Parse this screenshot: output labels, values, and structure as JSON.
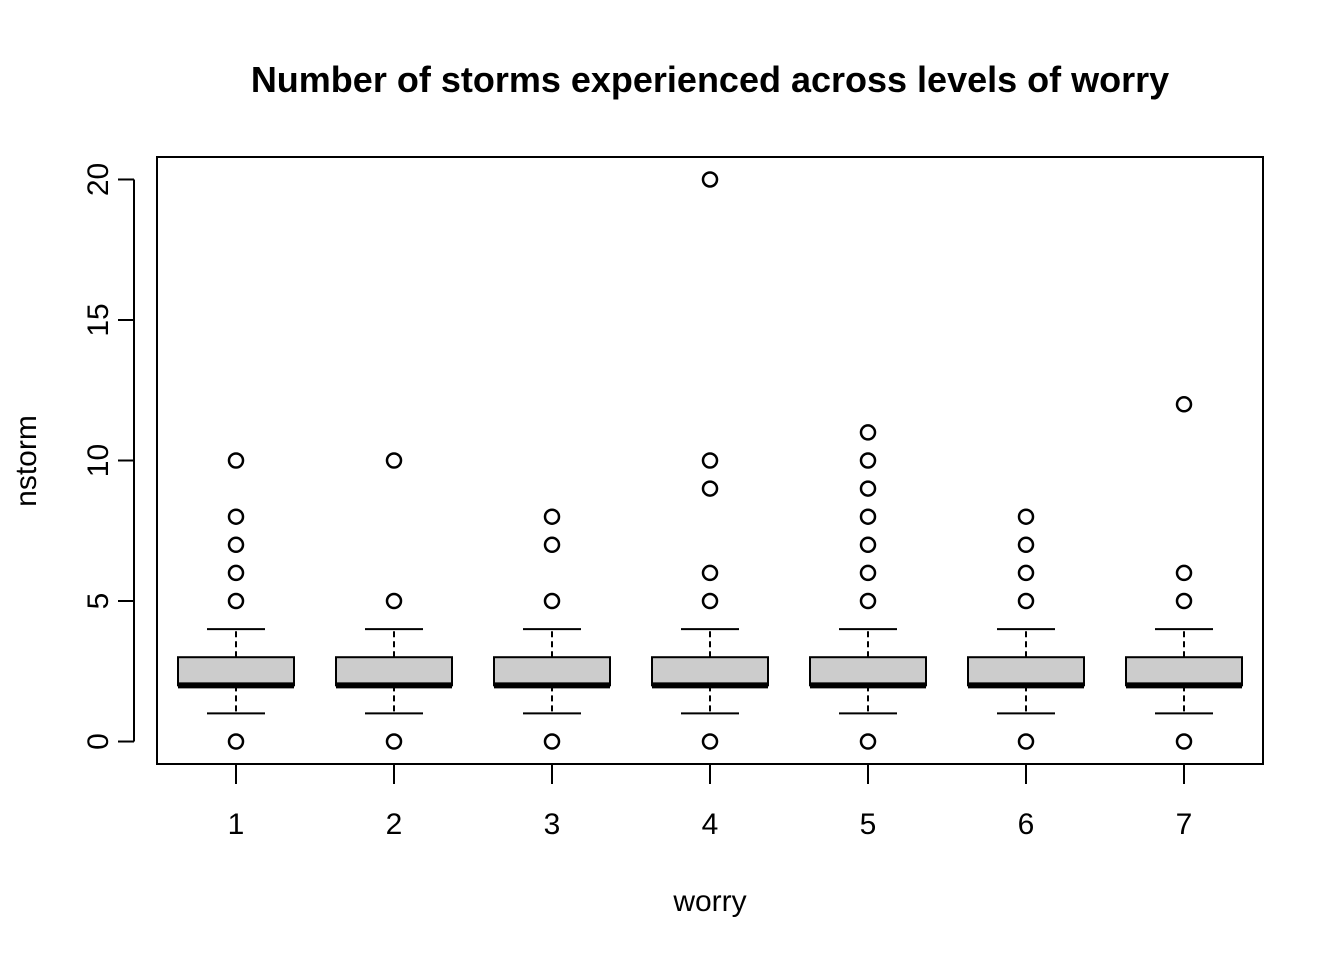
{
  "chart_data": {
    "type": "boxplot",
    "title": "Number of storms experienced across levels of worry",
    "xlabel": "worry",
    "ylabel": "nstorm",
    "ylim": [
      -0.8,
      20.8
    ],
    "yticks": [
      0,
      5,
      10,
      15,
      20
    ],
    "categories": [
      "1",
      "2",
      "3",
      "4",
      "5",
      "6",
      "7"
    ],
    "box_fill": "#cccccc",
    "boxes": [
      {
        "category": "1",
        "min": 1,
        "q1": 2,
        "median": 2,
        "q3": 3,
        "max": 4,
        "outliers": [
          0,
          5,
          6,
          7,
          8,
          10
        ]
      },
      {
        "category": "2",
        "min": 1,
        "q1": 2,
        "median": 2,
        "q3": 3,
        "max": 4,
        "outliers": [
          0,
          5,
          10
        ]
      },
      {
        "category": "3",
        "min": 1,
        "q1": 2,
        "median": 2,
        "q3": 3,
        "max": 4,
        "outliers": [
          0,
          5,
          7,
          8
        ]
      },
      {
        "category": "4",
        "min": 1,
        "q1": 2,
        "median": 2,
        "q3": 3,
        "max": 4,
        "outliers": [
          0,
          5,
          6,
          9,
          10,
          20
        ]
      },
      {
        "category": "5",
        "min": 1,
        "q1": 2,
        "median": 2,
        "q3": 3,
        "max": 4,
        "outliers": [
          0,
          5,
          6,
          7,
          8,
          9,
          10,
          11
        ]
      },
      {
        "category": "6",
        "min": 1,
        "q1": 2,
        "median": 2,
        "q3": 3,
        "max": 4,
        "outliers": [
          0,
          5,
          6,
          7,
          8
        ]
      },
      {
        "category": "7",
        "min": 1,
        "q1": 2,
        "median": 2,
        "q3": 3,
        "max": 4,
        "outliers": [
          0,
          5,
          6,
          12
        ]
      }
    ]
  }
}
